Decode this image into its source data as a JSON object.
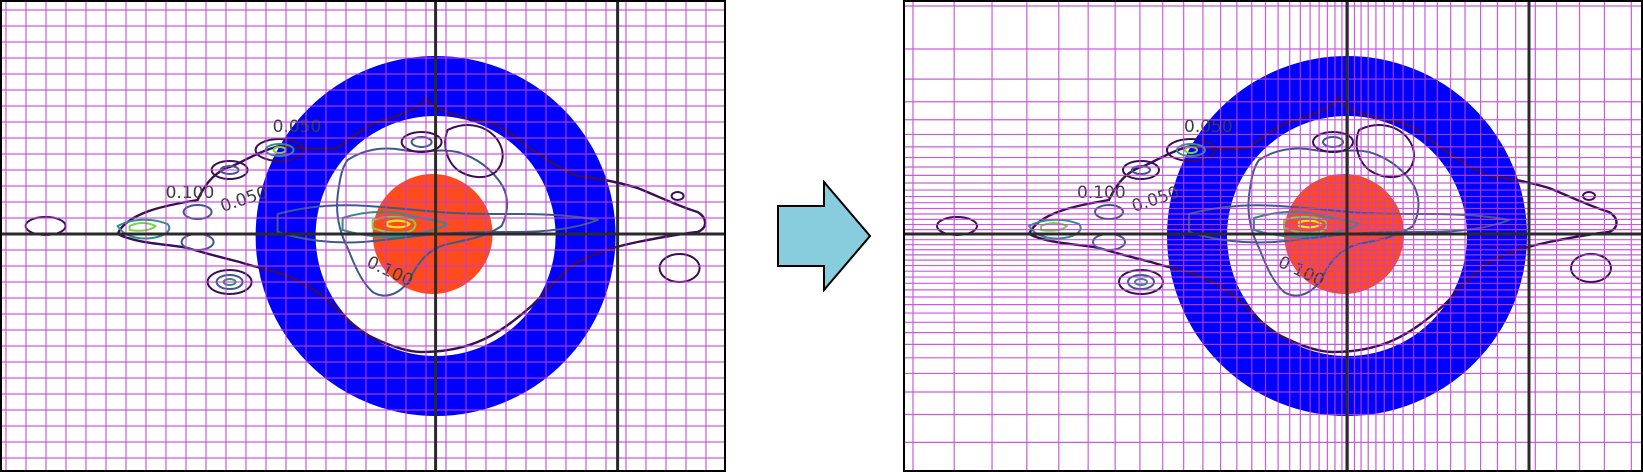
{
  "colors": {
    "ring": "#0000ff",
    "disk": "#ff4a1c",
    "grid": "#c040d8",
    "axis": "#2a2a2a",
    "arrow_fill": "#87cdde",
    "arrow_stroke": "#000000",
    "contour_outer": "#3b0d57",
    "contour_mid": "#3d5a8c",
    "contour_inner": "#2f8f8a",
    "contour_core": "#7fcf4a",
    "contour_peak": "#f5e61a"
  },
  "panels": {
    "before": {
      "grid": "uniform"
    },
    "after": {
      "grid": "adaptive"
    }
  },
  "contour_labels": [
    "0.050",
    "0.100",
    "0.050",
    "0.100"
  ],
  "arrow_icon": "right-arrow-icon"
}
